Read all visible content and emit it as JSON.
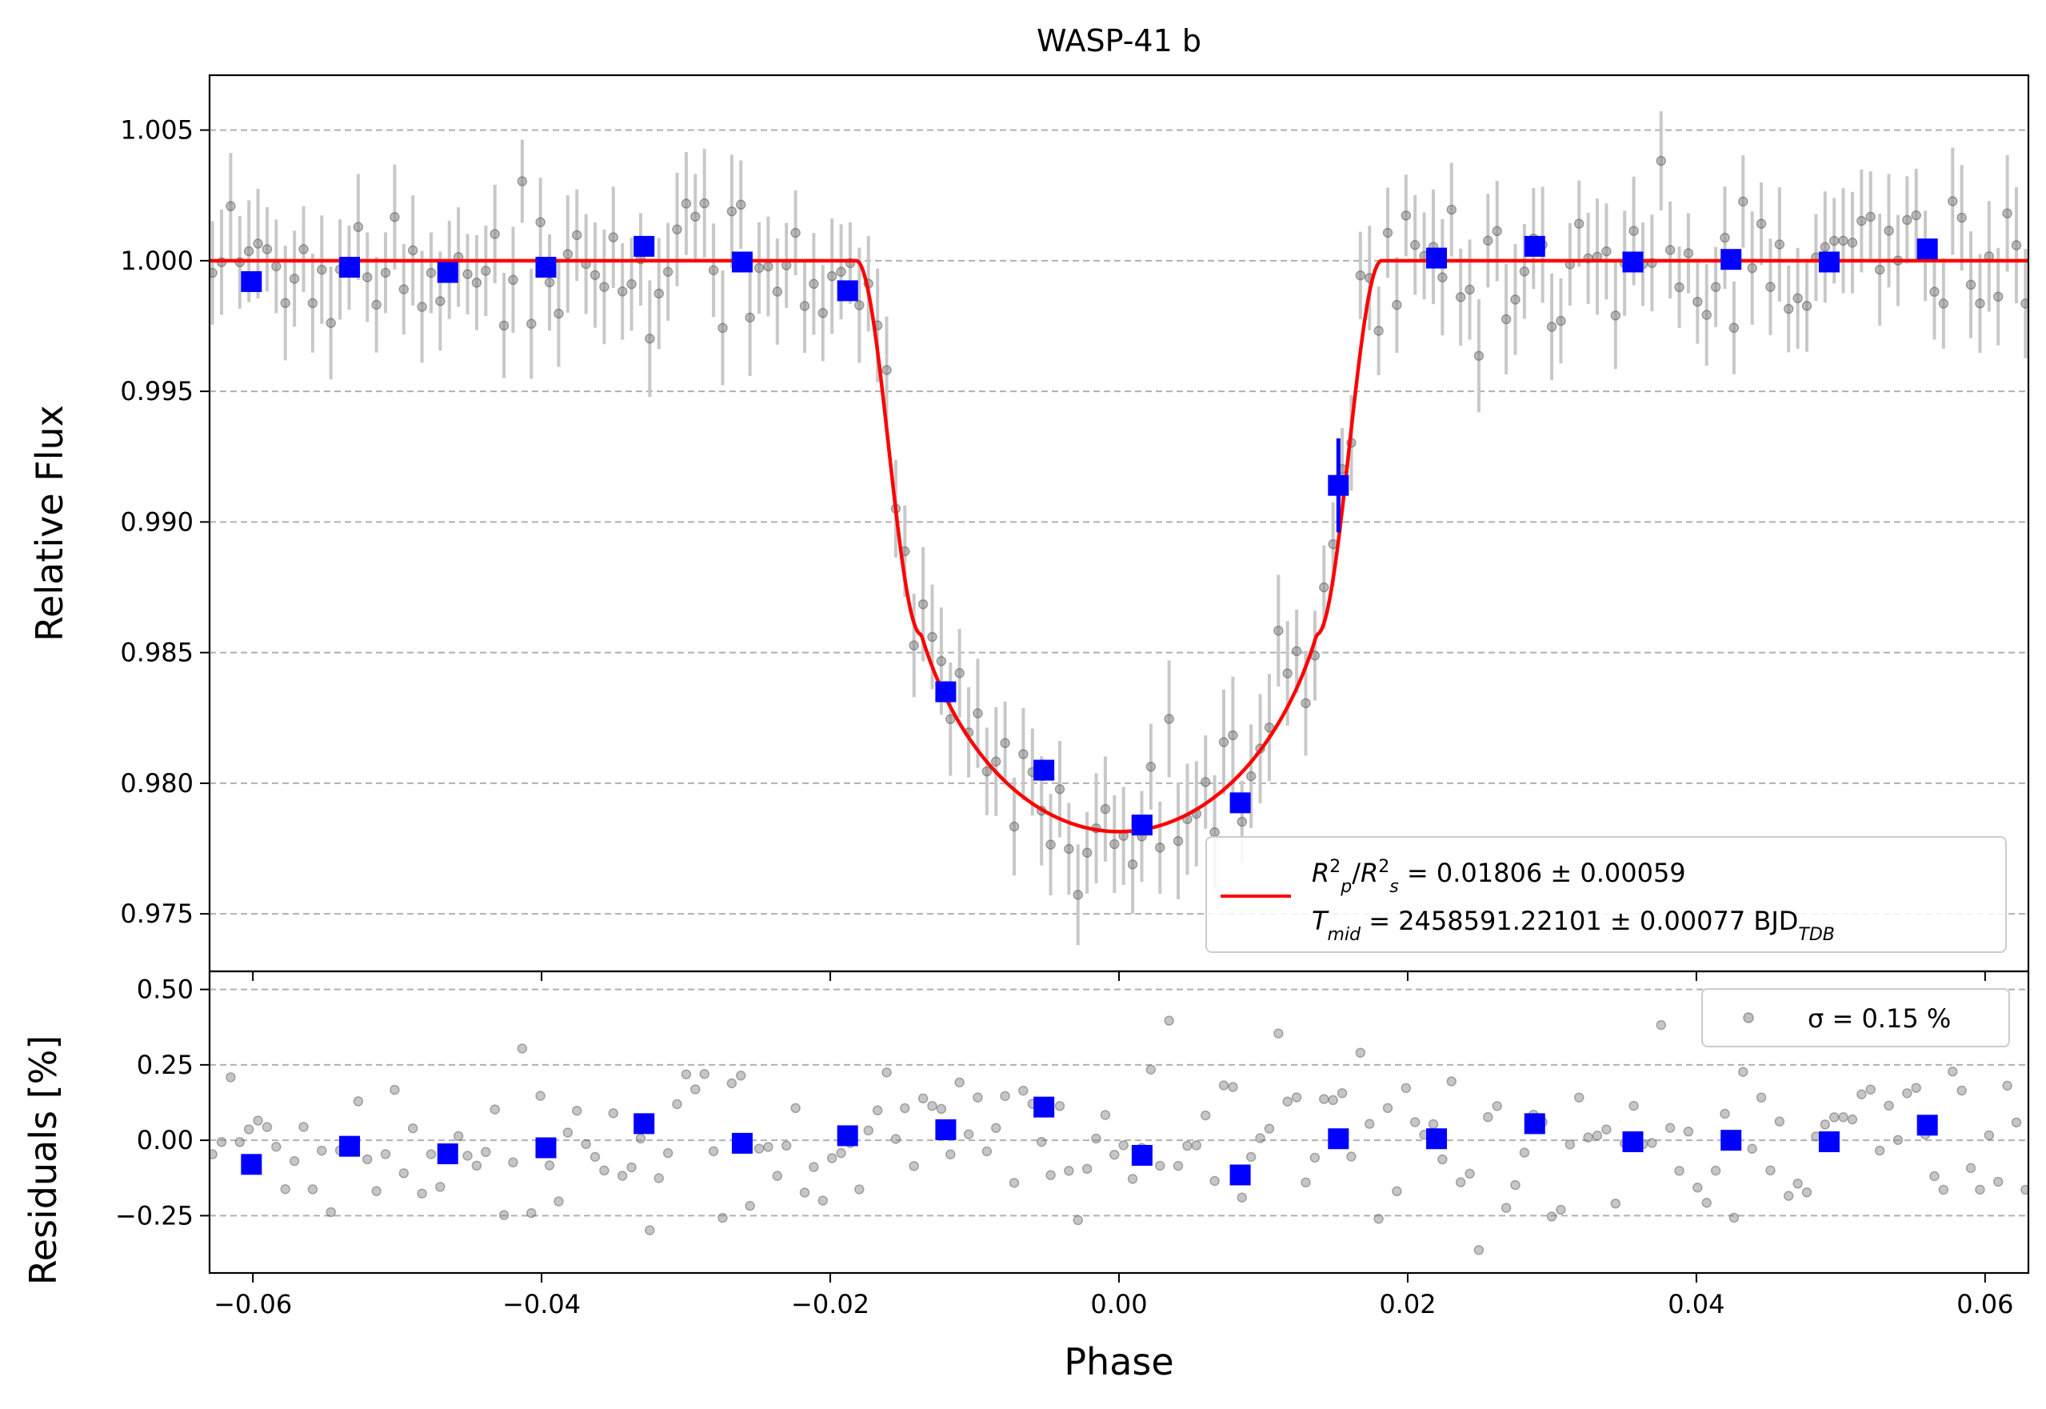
{
  "chart_data": [
    {
      "type": "scatter",
      "title": "WASP-41 b",
      "xlabel": "",
      "ylabel": "Relative Flux",
      "xlim": [
        -0.063,
        0.063
      ],
      "ylim": [
        0.9728,
        1.0071
      ],
      "grid": "horizontal dashed",
      "legend_position": "bottom-right",
      "x_ticks": [
        -0.06,
        -0.04,
        -0.02,
        0.0,
        0.02,
        0.04,
        0.06
      ],
      "x_tick_labels": [
        "",
        "",
        "",
        "",
        "",
        "",
        ""
      ],
      "y_ticks": [
        0.975,
        0.98,
        0.985,
        0.99,
        0.995,
        1.0,
        1.005
      ],
      "y_tick_labels": [
        "0.975",
        "0.980",
        "0.985",
        "0.990",
        "0.995",
        "1.000",
        "1.005"
      ],
      "model": {
        "name_line1": "R²p/R²s = 0.01806 ± 0.00059",
        "name_line2": "Tmid = 2458591.22101 ± 0.00077 BJD_TDB",
        "color": "#ff0000",
        "depth": 0.01806,
        "t14_half": 0.0182,
        "t23_half": 0.0137,
        "limb_darkening_u": 0.6,
        "baseline": 1.0
      },
      "binned": {
        "color": "#0000ff",
        "x": [
          -0.0601,
          -0.0533,
          -0.0465,
          -0.0397,
          -0.0329,
          -0.0261,
          -0.0188,
          -0.012,
          -0.0052,
          0.0016,
          0.0084,
          0.0152,
          0.022,
          0.0288,
          0.0356,
          0.0424,
          0.0492,
          0.056
        ],
        "y": [
          0.9992,
          0.99975,
          0.99955,
          0.99975,
          1.00055,
          0.99995,
          0.99885,
          0.9835,
          0.9805,
          0.9784,
          0.97925,
          0.9914,
          1.0001,
          1.00055,
          0.99995,
          1.00005,
          0.99995,
          1.00045
        ],
        "yerr": [
          0.0002,
          0.0002,
          0.0002,
          0.0002,
          0.0002,
          0.0002,
          0.00035,
          0.0004,
          0.0004,
          0.0003,
          0.0003,
          0.0018,
          0.0002,
          0.0002,
          0.0002,
          0.0002,
          0.0002,
          0.0002
        ]
      },
      "raw_points": {
        "color": "#808080",
        "count": 200,
        "x_start": -0.0628,
        "x_end": 0.0628,
        "scatter_sigma": 0.0015,
        "errorbar": 0.0018
      }
    },
    {
      "type": "scatter",
      "xlabel": "Phase",
      "ylabel": "Residuals [%]",
      "xlim": [
        -0.063,
        0.063
      ],
      "ylim": [
        -0.44,
        0.56
      ],
      "grid": "horizontal dashed",
      "legend_position": "top-right",
      "legend_label": "σ = 0.15 %",
      "x_ticks": [
        -0.06,
        -0.04,
        -0.02,
        0.0,
        0.02,
        0.04,
        0.06
      ],
      "x_tick_labels": [
        "−0.06",
        "−0.04",
        "−0.02",
        "0.00",
        "0.02",
        "0.04",
        "0.06"
      ],
      "y_ticks": [
        -0.25,
        0.0,
        0.25,
        0.5
      ],
      "y_tick_labels": [
        "−0.25",
        "0.00",
        "0.25",
        "0.50"
      ],
      "binned": {
        "color": "#0000ff",
        "x": [
          -0.0601,
          -0.0533,
          -0.0465,
          -0.0397,
          -0.0329,
          -0.0261,
          -0.0188,
          -0.012,
          -0.0052,
          0.0016,
          0.0084,
          0.0152,
          0.022,
          0.0288,
          0.0356,
          0.0424,
          0.0492,
          0.056
        ],
        "y": [
          -0.08,
          -0.02,
          -0.045,
          -0.025,
          0.055,
          -0.01,
          0.015,
          0.035,
          0.11,
          -0.05,
          -0.115,
          0.005,
          0.005,
          0.055,
          -0.005,
          0.0,
          -0.005,
          0.05
        ]
      },
      "raw_points": {
        "color": "#808080",
        "sigma": 0.15
      }
    }
  ]
}
